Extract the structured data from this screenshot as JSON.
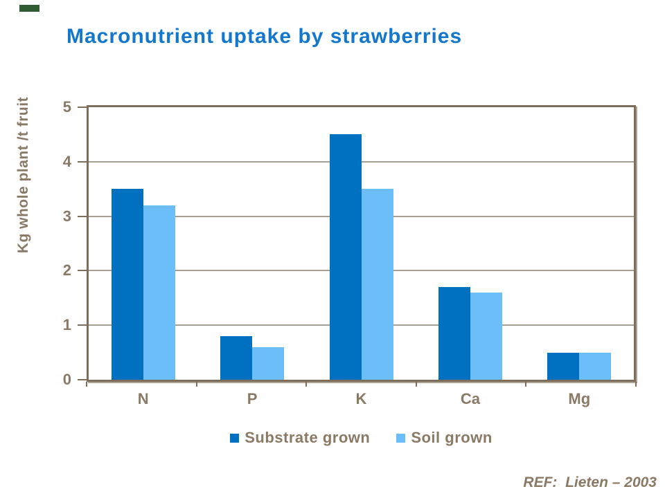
{
  "slide": {
    "title": "Macronutrient uptake by strawberries",
    "ref": "REF:  Lieten – 2003",
    "colors": {
      "title_blue": "#1377CE",
      "substrate_blue": "#0070C0",
      "soil_blue": "#6CBEF8",
      "label_brown": "#8A7A65",
      "border_brown": "#7D6E5B",
      "gridline": "#A89E91",
      "accent_green": "#2F5D33"
    }
  },
  "chart_data": {
    "type": "bar",
    "title": "Macronutrient uptake by strawberries",
    "categories": [
      "N",
      "P",
      "K",
      "Ca",
      "Mg"
    ],
    "series": [
      {
        "name": "Substrate grown",
        "color": "#0070C0",
        "values": [
          3.5,
          0.8,
          4.5,
          1.7,
          0.5
        ]
      },
      {
        "name": "Soil grown",
        "color": "#6CBEF8",
        "values": [
          3.2,
          0.6,
          3.5,
          1.6,
          0.5
        ]
      }
    ],
    "xlabel": "",
    "ylabel": "Kg whole plant /t fruit",
    "ylim": [
      0,
      5
    ],
    "yticks": [
      0,
      1,
      2,
      3,
      4,
      5
    ],
    "grid": true,
    "legend_position": "bottom",
    "annotation": "REF:  Lieten – 2003"
  }
}
